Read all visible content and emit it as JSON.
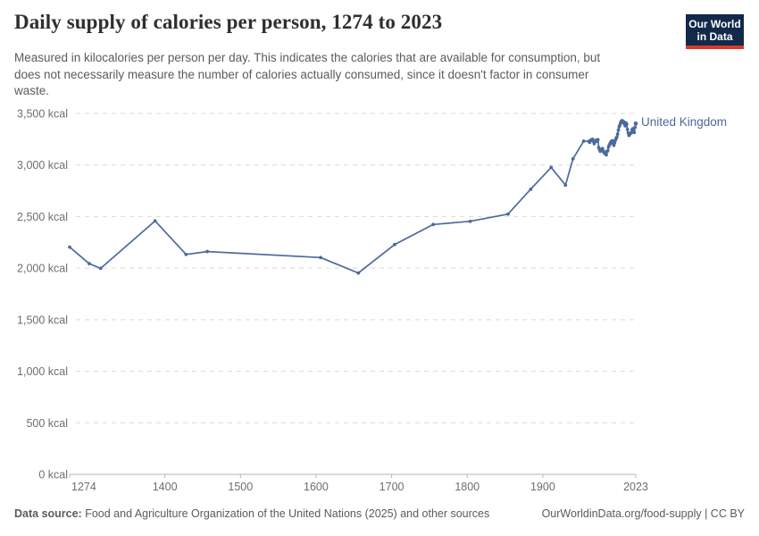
{
  "header": {
    "title": "Daily supply of calories per person, 1274 to 2023",
    "subtitle_lines": [
      "Measured in kilocalories per person per day. This indicates the calories that are available for consumption, but",
      "does not necessarily measure the number of calories actually consumed, since it doesn't factor in consumer",
      "waste."
    ]
  },
  "logo": {
    "line1": "Our World",
    "line2": "in Data",
    "bg_color": "#12294b",
    "accent_color": "#d93b2b"
  },
  "chart_data": {
    "type": "line",
    "title": "Daily supply of calories per person, 1274 to 2023",
    "xlabel": "",
    "ylabel": "kcal",
    "x_range": [
      1274,
      2023
    ],
    "ylim": [
      0,
      3500
    ],
    "grid": "dashed-horizontal-gridlines",
    "x_ticks": [
      1274,
      1400,
      1500,
      1600,
      1700,
      1800,
      1900,
      2023
    ],
    "y_ticks": [
      0,
      500,
      1000,
      1500,
      2000,
      2500,
      3000,
      3500
    ],
    "y_tick_suffix": " kcal",
    "legend_position": "right-of-line-end",
    "colors": {
      "line": "#4c6a9c",
      "grid": "#d9d9d9",
      "axis": "#b5b5b5",
      "tick_text": "#6e6e6e"
    },
    "series": [
      {
        "name": "United Kingdom",
        "color": "#4c6a9c",
        "points": [
          [
            1274,
            2204
          ],
          [
            1300,
            2043
          ],
          [
            1315,
            1998
          ],
          [
            1387,
            2458
          ],
          [
            1428,
            2133
          ],
          [
            1456,
            2161
          ],
          [
            1606,
            2103
          ],
          [
            1656,
            1953
          ],
          [
            1704,
            2229
          ],
          [
            1755,
            2423
          ],
          [
            1804,
            2454
          ],
          [
            1854,
            2524
          ],
          [
            1884,
            2765
          ],
          [
            1911,
            2977
          ],
          [
            1930,
            2805
          ],
          [
            1940,
            3060
          ],
          [
            1954,
            3231
          ],
          [
            1961,
            3230
          ],
          [
            1962,
            3219
          ],
          [
            1963,
            3235
          ],
          [
            1964,
            3245
          ],
          [
            1965,
            3240
          ],
          [
            1966,
            3250
          ],
          [
            1967,
            3230
          ],
          [
            1968,
            3207
          ],
          [
            1969,
            3225
          ],
          [
            1970,
            3235
          ],
          [
            1971,
            3242
          ],
          [
            1972,
            3230
          ],
          [
            1973,
            3245
          ],
          [
            1974,
            3170
          ],
          [
            1975,
            3150
          ],
          [
            1976,
            3133
          ],
          [
            1977,
            3145
          ],
          [
            1978,
            3150
          ],
          [
            1979,
            3160
          ],
          [
            1980,
            3135
          ],
          [
            1981,
            3120
          ],
          [
            1982,
            3112
          ],
          [
            1983,
            3125
          ],
          [
            1984,
            3098
          ],
          [
            1985,
            3130
          ],
          [
            1986,
            3140
          ],
          [
            1987,
            3175
          ],
          [
            1988,
            3195
          ],
          [
            1989,
            3207
          ],
          [
            1990,
            3225
          ],
          [
            1991,
            3230
          ],
          [
            1992,
            3236
          ],
          [
            1993,
            3210
          ],
          [
            1994,
            3190
          ],
          [
            1995,
            3215
          ],
          [
            1996,
            3240
          ],
          [
            1997,
            3257
          ],
          [
            1998,
            3270
          ],
          [
            1999,
            3300
          ],
          [
            2000,
            3339
          ],
          [
            2001,
            3370
          ],
          [
            2002,
            3388
          ],
          [
            2003,
            3410
          ],
          [
            2004,
            3425
          ],
          [
            2005,
            3430
          ],
          [
            2006,
            3410
          ],
          [
            2007,
            3420
          ],
          [
            2008,
            3400
          ],
          [
            2009,
            3380
          ],
          [
            2010,
            3408
          ],
          [
            2011,
            3395
          ],
          [
            2012,
            3345
          ],
          [
            2013,
            3310
          ],
          [
            2014,
            3287
          ],
          [
            2015,
            3300
          ],
          [
            2016,
            3310
          ],
          [
            2017,
            3310
          ],
          [
            2018,
            3340
          ],
          [
            2019,
            3351
          ],
          [
            2020,
            3325
          ],
          [
            2021,
            3316
          ],
          [
            2022,
            3365
          ],
          [
            2023,
            3402
          ]
        ]
      }
    ]
  },
  "footer": {
    "source_label": "Data source:",
    "source_text": " Food and Agriculture Organization of the United Nations (2025) and other sources",
    "license_text": "OurWorldinData.org/food-supply | CC BY"
  }
}
